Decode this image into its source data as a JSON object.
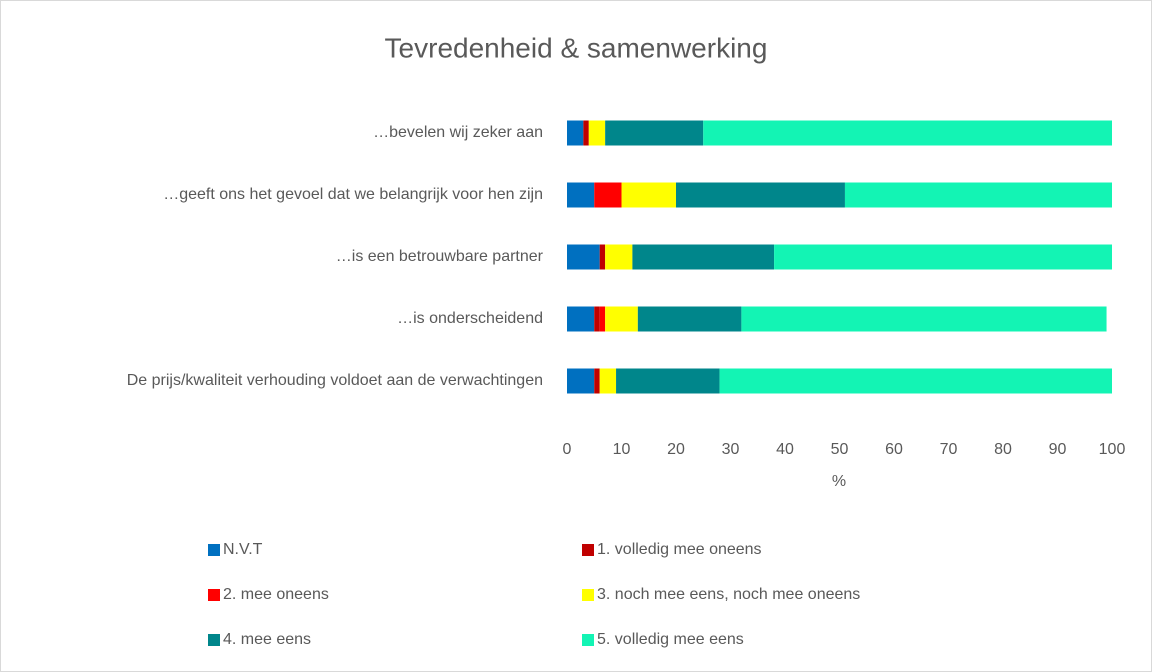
{
  "chart_data": {
    "type": "stacked-bar-horizontal",
    "title": "Tevredenheid & samenwerking",
    "x_label": "%",
    "categories": [
      "…bevelen wij zeker aan",
      "…geeft ons het gevoel dat we belangrijk voor hen zijn",
      "…is een betrouwbare partner",
      "…is onderscheidend",
      "De prijs/kwaliteit verhouding voldoet aan de verwachtingen"
    ],
    "series": [
      {
        "name": "N.V.T",
        "color": "#0070c0",
        "values": [
          3,
          5,
          6,
          5,
          5
        ]
      },
      {
        "name": "1. volledig mee oneens",
        "color": "#c00000",
        "values": [
          1,
          0,
          1,
          1,
          1
        ]
      },
      {
        "name": "2. mee oneens",
        "color": "#ff0000",
        "values": [
          0,
          5,
          0,
          1,
          0
        ]
      },
      {
        "name": "3. noch mee eens, noch mee oneens",
        "color": "#ffff00",
        "values": [
          3,
          10,
          5,
          6,
          3
        ]
      },
      {
        "name": "4. mee eens",
        "color": "#00868b",
        "values": [
          18,
          31,
          26,
          19,
          19
        ]
      },
      {
        "name": "5. volledig mee eens",
        "color": "#13f4b4",
        "values": [
          75,
          49,
          62,
          67,
          72
        ]
      }
    ],
    "xlim": [
      0,
      100
    ],
    "xticks": [
      0,
      10,
      20,
      30,
      40,
      50,
      60,
      70,
      80,
      90,
      100
    ],
    "legend": "bottom"
  }
}
